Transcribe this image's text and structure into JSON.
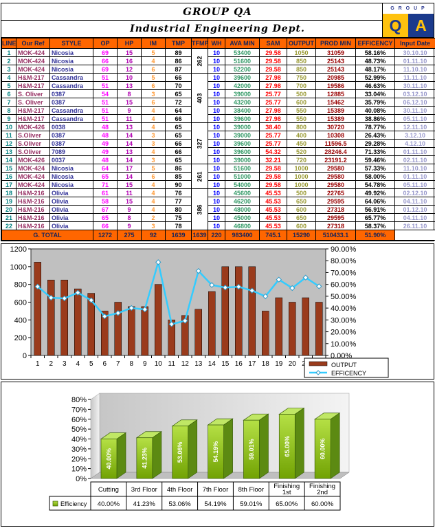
{
  "header": {
    "title": "GROUP QA",
    "subtitle": "Industrial Engineering Dept.",
    "logo": {
      "word": "G R O U P",
      "q": "Q",
      "a": "A"
    }
  },
  "table": {
    "columns": [
      "LINE",
      "Our Ref",
      "STYLE",
      "OP",
      "HP",
      "IM",
      "TMP",
      "TFMP",
      "WH",
      "AVA MIN",
      "SAM",
      "OUTPUT",
      "PROD MIN",
      "EFFICENCY",
      "Input Date"
    ],
    "rows": [
      [
        "1",
        "MOK-424",
        "Nicosia",
        "69",
        "15",
        "5",
        "89",
        "10",
        "53400",
        "29.58",
        "1050",
        "31059",
        "58.16%",
        "30.10.10"
      ],
      [
        "2",
        "MOK-424",
        "Nicosia",
        "66",
        "16",
        "4",
        "86",
        "10",
        "51600",
        "29.58",
        "850",
        "25143",
        "48.73%",
        "01.11.10"
      ],
      [
        "3",
        "MOK-424",
        "Nicosia",
        "69",
        "12",
        "6",
        "87",
        "10",
        "52200",
        "29.58",
        "850",
        "25143",
        "48.17%",
        "11.10.10"
      ],
      [
        "4",
        "H&M-217",
        "Cassandra",
        "51",
        "10",
        "5",
        "66",
        "10",
        "39600",
        "27.98",
        "750",
        "20985",
        "52.99%",
        "11.11.10"
      ],
      [
        "5",
        "H&M-217",
        "Cassandra",
        "51",
        "13",
        "6",
        "70",
        "10",
        "42000",
        "27.98",
        "700",
        "19586",
        "46.63%",
        "30.11.10"
      ],
      [
        "6",
        "S. Oliver",
        "0387",
        "54",
        "8",
        "3",
        "65",
        "10",
        "39000",
        "25.77",
        "500",
        "12885",
        "33.04%",
        "03.12.10"
      ],
      [
        "7",
        "S. Oliver",
        "0387",
        "51",
        "15",
        "6",
        "72",
        "10",
        "43200",
        "25.77",
        "600",
        "15462",
        "35.79%",
        "06.12.10"
      ],
      [
        "8",
        "H&M-217",
        "Cassandra",
        "51",
        "9",
        "4",
        "64",
        "10",
        "38400",
        "27.98",
        "550",
        "15389",
        "40.08%",
        "30.11.10"
      ],
      [
        "9",
        "H&M-217",
        "Cassandra",
        "51",
        "11",
        "4",
        "66",
        "10",
        "39600",
        "27.98",
        "550",
        "15389",
        "38.86%",
        "05.11.10"
      ],
      [
        "10",
        "MOK-426",
        "0038",
        "48",
        "13",
        "4",
        "65",
        "10",
        "39000",
        "38.40",
        "800",
        "30720",
        "78.77%",
        "12.11.10"
      ],
      [
        "11",
        "S.Oliver",
        "0387",
        "48",
        "14",
        "3",
        "65",
        "10",
        "39000",
        "25.77",
        "400",
        "10308",
        "26.43%",
        "3.12.10"
      ],
      [
        "12",
        "S.Oliver",
        "0387",
        "49",
        "14",
        "3",
        "66",
        "10",
        "39600",
        "25.77",
        "450",
        "11596.5",
        "29.28%",
        "4.12.10"
      ],
      [
        "13",
        "S.Oliver",
        "7089",
        "49",
        "13",
        "4",
        "66",
        "10",
        "39600",
        "54.32",
        "520",
        "28246.4",
        "71.33%",
        "01.11.10"
      ],
      [
        "14",
        "MOK-426",
        "0037",
        "48",
        "14",
        "3",
        "65",
        "10",
        "39000",
        "32.21",
        "720",
        "23191.2",
        "59.46%",
        "02.11.10"
      ],
      [
        "15",
        "MOK-424",
        "Nicosia",
        "64",
        "17",
        "5",
        "86",
        "10",
        "51600",
        "29.58",
        "1000",
        "29580",
        "57.33%",
        "11.10.10"
      ],
      [
        "16",
        "MOK-424",
        "Nicosia",
        "65",
        "14",
        "6",
        "85",
        "10",
        "51000",
        "29.58",
        "1000",
        "29580",
        "58.00%",
        "01.11.10"
      ],
      [
        "17",
        "MOK-424",
        "Nicosia",
        "71",
        "15",
        "4",
        "90",
        "10",
        "54000",
        "29.58",
        "1000",
        "29580",
        "54.78%",
        "05.11.10"
      ],
      [
        "18",
        "H&M-216",
        "Olivia",
        "61",
        "11",
        "4",
        "76",
        "10",
        "45600",
        "45.53",
        "500",
        "22765",
        "49.92%",
        "02.12.10"
      ],
      [
        "19",
        "H&M-216",
        "Olivia",
        "58",
        "15",
        "4",
        "77",
        "10",
        "46200",
        "45.53",
        "650",
        "29595",
        "64.06%",
        "04.11.10"
      ],
      [
        "20",
        "H&M-216",
        "Olivia",
        "67",
        "9",
        "4",
        "80",
        "10",
        "48000",
        "45.53",
        "600",
        "27318",
        "56.91%",
        "01.12.10"
      ],
      [
        "21",
        "H&M-216",
        "Olivia",
        "65",
        "8",
        "2",
        "75",
        "10",
        "45000",
        "45.53",
        "650",
        "29595",
        "65.77%",
        "04.11.10"
      ],
      [
        "22",
        "H&M-216",
        "Olivia",
        "66",
        "9",
        "3",
        "78",
        "10",
        "46800",
        "45.53",
        "600",
        "27318",
        "58.37%",
        "26.11.10"
      ]
    ],
    "tfmp_groups": [
      {
        "start": 0,
        "span": 3,
        "value": "262"
      },
      {
        "start": 3,
        "span": 6,
        "value": "403"
      },
      {
        "start": 9,
        "span": 5,
        "value": "327"
      },
      {
        "start": 14,
        "span": 3,
        "value": "261"
      },
      {
        "start": 17,
        "span": 5,
        "value": "386"
      }
    ],
    "total": {
      "label": "G. TOTAL",
      "values": [
        "1272",
        "275",
        "92",
        "1639",
        "1639",
        "220",
        "983400",
        "745.1",
        "15290",
        "510433.1",
        "51.90%",
        ""
      ]
    }
  },
  "colors": {
    "header_bg": "#FF6600",
    "bar_output": "#9A3B1C",
    "line_efficiency": "#33CCFF",
    "plot_bg": "#C0C0C0",
    "bar3d_front_top": "#B5E045",
    "bar3d_front_bottom": "#71A203",
    "bar3d_side": "#5C8A12",
    "bar3d_top": "#C0E765",
    "logo_yellow": "#FFC20E",
    "logo_blue": "#1B3A8C"
  },
  "chart_data": [
    {
      "type": "bar",
      "subtype": "bar+line-combo",
      "categories": [
        "1",
        "2",
        "3",
        "4",
        "5",
        "6",
        "7",
        "8",
        "9",
        "10",
        "11",
        "12",
        "13",
        "14",
        "15",
        "16",
        "17",
        "18",
        "19",
        "20",
        "21",
        "22"
      ],
      "series": [
        {
          "name": "OUTPUT",
          "type": "bar",
          "axis": "left",
          "values": [
            1050,
            850,
            850,
            750,
            700,
            500,
            600,
            550,
            550,
            800,
            400,
            450,
            520,
            720,
            1000,
            1000,
            1000,
            500,
            650,
            600,
            650,
            600
          ]
        },
        {
          "name": "EFFICENCY",
          "type": "line",
          "axis": "right",
          "values": [
            58.16,
            48.73,
            48.17,
            52.99,
            46.63,
            33.04,
            35.79,
            40.08,
            38.86,
            78.77,
            26.43,
            29.28,
            71.33,
            59.46,
            57.33,
            58.0,
            54.78,
            49.92,
            64.06,
            56.91,
            65.77,
            58.37
          ]
        }
      ],
      "left_axis": {
        "min": 0,
        "max": 1200,
        "step": 200,
        "ticks": [
          "0",
          "200",
          "400",
          "600",
          "800",
          "1000",
          "1200"
        ]
      },
      "right_axis": {
        "min": 0,
        "max": 90,
        "step": 10,
        "ticks": [
          "0.00%",
          "10.00%",
          "20.00%",
          "30.00%",
          "40.00%",
          "50.00%",
          "60.00%",
          "70.00%",
          "80.00%",
          "90.00%"
        ]
      },
      "legend": {
        "position": "bottom-right",
        "entries": [
          "OUTPUT",
          "EFFICENCY"
        ]
      },
      "grid": false,
      "title": "",
      "xlabel": "",
      "ylabel": ""
    },
    {
      "type": "bar",
      "subtype": "3d-column",
      "categories": [
        "Cutting",
        "3rd Floor",
        "4th Floor",
        "7th Floor",
        "8th Floor",
        "Finishing 1st",
        "Finishing 2nd"
      ],
      "cat_lines": [
        [
          "Cutting"
        ],
        [
          "3rd Floor"
        ],
        [
          "4th Floor"
        ],
        [
          "7th Floor"
        ],
        [
          "8th Floor"
        ],
        [
          "Finishing",
          "1st"
        ],
        [
          "Finishing",
          "2nd"
        ]
      ],
      "values": [
        40.0,
        41.23,
        53.06,
        54.19,
        59.01,
        65.0,
        60.0
      ],
      "value_labels": [
        "40.00%",
        "41.23%",
        "53.06%",
        "54.19%",
        "59.01%",
        "65.00%",
        "60.00%"
      ],
      "yaxis": {
        "min": 0,
        "max": 80,
        "step": 10,
        "ticks": [
          "0%",
          "10%",
          "20%",
          "30%",
          "40%",
          "50%",
          "60%",
          "70%",
          "80%"
        ]
      },
      "legend": {
        "position": "table-left",
        "entries": [
          "Efficiency"
        ]
      },
      "data_table": true,
      "title": "",
      "xlabel": "",
      "ylabel": ""
    }
  ]
}
